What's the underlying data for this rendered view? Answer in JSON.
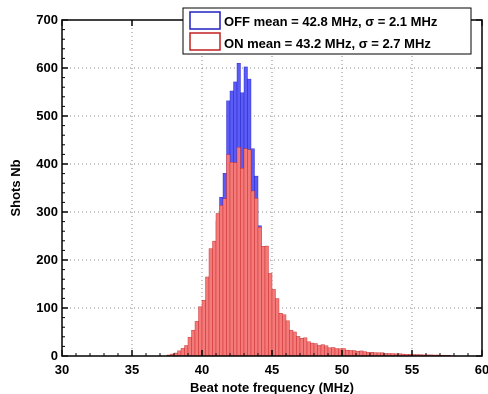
{
  "chart_data": {
    "type": "bar",
    "xlabel": "Beat note frequency (MHz)",
    "ylabel": "Shots Nb",
    "xlim": [
      30,
      60
    ],
    "ylim": [
      0,
      700
    ],
    "xticks": [
      30,
      35,
      40,
      45,
      50,
      55,
      60
    ],
    "yticks": [
      0,
      100,
      200,
      300,
      400,
      500,
      600,
      700
    ],
    "grid": true,
    "legend_position": "top-right",
    "bin_width_MHz": 0.25,
    "series": [
      {
        "name": "OFF mean = 42.8 MHz, σ = 2.1 MHz",
        "color": "#5b5bf5",
        "edge_color": "#2020c0",
        "peak": 610
      },
      {
        "name": "ON mean = 43.2 MHz, σ = 2.7 MHz",
        "color": "#f47a7a",
        "edge_color": "#c02020",
        "peak": 435
      }
    ]
  }
}
